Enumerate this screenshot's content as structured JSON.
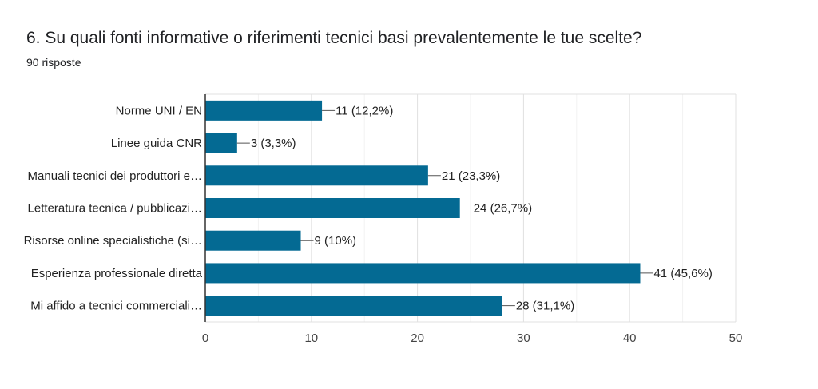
{
  "header": {
    "title": "6. Su quali fonti informative o riferimenti tecnici basi prevalentemente le tue scelte?",
    "subtitle": "90 risposte"
  },
  "colors": {
    "bar": "#046a93",
    "grid": "#e0e0e0",
    "axis": "#333333"
  },
  "chart_data": {
    "type": "bar",
    "orientation": "horizontal",
    "title": "",
    "xlabel": "",
    "ylabel": "",
    "categories": [
      "Norme UNI / EN",
      "Linee guida CNR",
      "Manuali tecnici dei produttori e…",
      "Letteratura tecnica / pubblicazi…",
      "Risorse online specialistiche (si…",
      "Esperienza professionale diretta",
      "Mi affido a tecnici commerciali…"
    ],
    "values": [
      11,
      3,
      21,
      24,
      9,
      41,
      28
    ],
    "value_labels": [
      "11 (12,2%)",
      "3 (3,3%)",
      "21 (23,3%)",
      "24 (26,7%)",
      "9 (10%)",
      "41 (45,6%)",
      "28 (31,1%)"
    ],
    "xlim": [
      0,
      50
    ],
    "ticks": [
      0,
      10,
      20,
      30,
      40,
      50
    ],
    "grid": true,
    "legend": "none"
  }
}
